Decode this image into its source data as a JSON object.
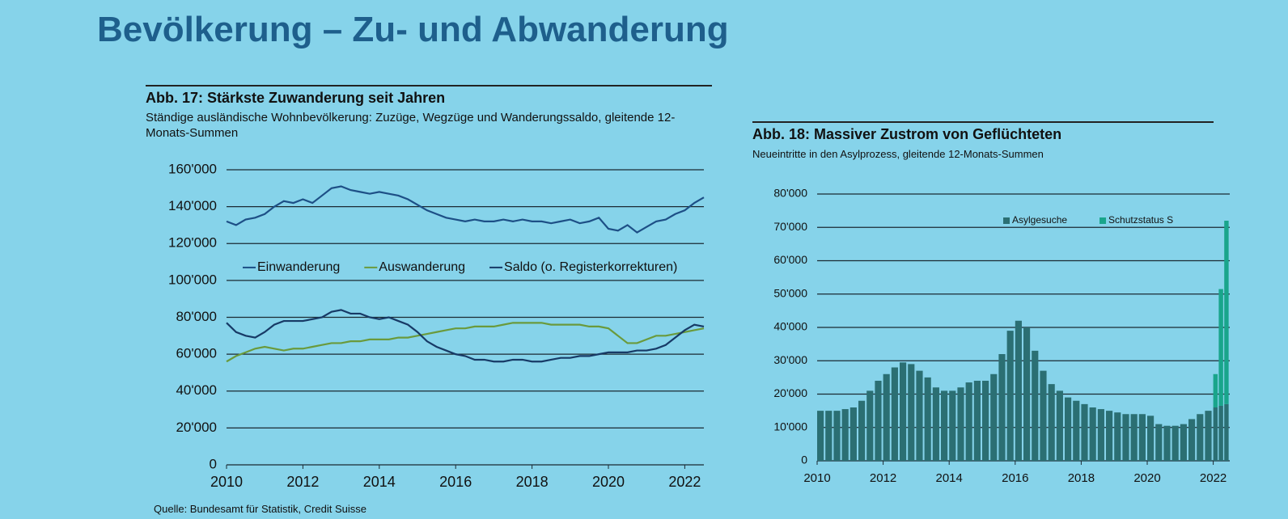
{
  "title": "Bevölkerung – Zu- und Abwanderung",
  "source": "Quelle: Bundesamt für Statistik, Credit Suisse",
  "chart_data": [
    {
      "type": "line",
      "title": "Abb. 17: Stärkste Zuwanderung seit Jahren",
      "subtitle": "Ständige ausländische Wohnbevölkerung: Zuzüge, Wegzüge und Wanderungssaldo, gleitende 12-Monats-Summen",
      "x": [
        2010,
        2010.25,
        2010.5,
        2010.75,
        2011,
        2011.25,
        2011.5,
        2011.75,
        2012,
        2012.25,
        2012.5,
        2012.75,
        2013,
        2013.25,
        2013.5,
        2013.75,
        2014,
        2014.25,
        2014.5,
        2014.75,
        2015,
        2015.25,
        2015.5,
        2015.75,
        2016,
        2016.25,
        2016.5,
        2016.75,
        2017,
        2017.25,
        2017.5,
        2017.75,
        2018,
        2018.25,
        2018.5,
        2018.75,
        2019,
        2019.25,
        2019.5,
        2019.75,
        2020,
        2020.25,
        2020.5,
        2020.75,
        2021,
        2021.25,
        2021.5,
        2021.75,
        2022,
        2022.25,
        2022.5
      ],
      "xlim": [
        2010,
        2022.5
      ],
      "xticks": [
        2010,
        2012,
        2014,
        2016,
        2018,
        2020,
        2022
      ],
      "ylim": [
        0,
        160000
      ],
      "yticks": [
        0,
        {
          "value": 20000,
          "label": "20'000"
        },
        {
          "value": 40000,
          "label": "40'000"
        },
        {
          "value": 60000,
          "label": "60'000"
        },
        {
          "value": 80000,
          "label": "80'000"
        },
        {
          "value": 100000,
          "label": "100'000"
        },
        {
          "value": 120000,
          "label": "120'000"
        },
        {
          "value": 140000,
          "label": "140'000"
        },
        {
          "value": 160000,
          "label": "160'000"
        }
      ],
      "grid": true,
      "legend": "center",
      "series": [
        {
          "name": "Einwanderung",
          "color": "#1d4f86",
          "values": [
            132000,
            130000,
            133000,
            134000,
            136000,
            140000,
            143000,
            142000,
            144000,
            142000,
            146000,
            150000,
            151000,
            149000,
            148000,
            147000,
            148000,
            147000,
            146000,
            144000,
            141000,
            138000,
            136000,
            134000,
            133000,
            132000,
            133000,
            132000,
            132000,
            133000,
            132000,
            133000,
            132000,
            132000,
            131000,
            132000,
            133000,
            131000,
            132000,
            134000,
            128000,
            127000,
            130000,
            126000,
            129000,
            132000,
            133000,
            136000,
            138000,
            142000,
            145000
          ]
        },
        {
          "name": "Auswanderung",
          "color": "#6a9a3c",
          "values": [
            56000,
            59000,
            61000,
            63000,
            64000,
            63000,
            62000,
            63000,
            63000,
            64000,
            65000,
            66000,
            66000,
            67000,
            67000,
            68000,
            68000,
            68000,
            69000,
            69000,
            70000,
            71000,
            72000,
            73000,
            74000,
            74000,
            75000,
            75000,
            75000,
            76000,
            77000,
            77000,
            77000,
            77000,
            76000,
            76000,
            76000,
            76000,
            75000,
            75000,
            74000,
            70000,
            66000,
            66000,
            68000,
            70000,
            70000,
            71000,
            72000,
            73000,
            74000
          ]
        },
        {
          "name": "Saldo (o. Registerkorrekturen)",
          "color": "#173a66",
          "values": [
            77000,
            72000,
            70000,
            69000,
            72000,
            76000,
            78000,
            78000,
            78000,
            79000,
            80000,
            83000,
            84000,
            82000,
            82000,
            80000,
            79000,
            80000,
            78000,
            76000,
            72000,
            67000,
            64000,
            62000,
            60000,
            59000,
            57000,
            57000,
            56000,
            56000,
            57000,
            57000,
            56000,
            56000,
            57000,
            58000,
            58000,
            59000,
            59000,
            60000,
            61000,
            61000,
            61000,
            62000,
            62000,
            63000,
            65000,
            69000,
            73000,
            76000,
            75000
          ]
        }
      ]
    },
    {
      "type": "bar",
      "title": "Abb. 18: Massiver Zustrom von Geflüchteten",
      "subtitle": "Neueintritte in den Asylprozess, gleitende 12-Monats-Summen",
      "x": [
        2010,
        2010.25,
        2010.5,
        2010.75,
        2011,
        2011.25,
        2011.5,
        2011.75,
        2012,
        2012.25,
        2012.5,
        2012.75,
        2013,
        2013.25,
        2013.5,
        2013.75,
        2014,
        2014.25,
        2014.5,
        2014.75,
        2015,
        2015.25,
        2015.5,
        2015.75,
        2016,
        2016.25,
        2016.5,
        2016.75,
        2017,
        2017.25,
        2017.5,
        2017.75,
        2018,
        2018.25,
        2018.5,
        2018.75,
        2019,
        2019.25,
        2019.5,
        2019.75,
        2020,
        2020.25,
        2020.5,
        2020.75,
        2021,
        2021.25,
        2021.5,
        2021.75,
        2022,
        2022.1667,
        2022.3333
      ],
      "xlim": [
        2010,
        2022.5
      ],
      "xticks": [
        2010,
        2012,
        2014,
        2016,
        2018,
        2020,
        2022
      ],
      "ylim": [
        0,
        80000
      ],
      "yticks": [
        0,
        {
          "value": 10000,
          "label": "10'000"
        },
        {
          "value": 20000,
          "label": "20'000"
        },
        {
          "value": 30000,
          "label": "30'000"
        },
        {
          "value": 40000,
          "label": "40'000"
        },
        {
          "value": 50000,
          "label": "50'000"
        },
        {
          "value": 60000,
          "label": "60'000"
        },
        {
          "value": 70000,
          "label": "70'000"
        },
        {
          "value": 80000,
          "label": "80'000"
        }
      ],
      "grid": true,
      "stacked": true,
      "legend": "top-right",
      "series": [
        {
          "name": "Asylgesuche",
          "color": "#2b6f73",
          "values": [
            15000,
            15000,
            15000,
            15500,
            16000,
            18000,
            21000,
            24000,
            26000,
            28000,
            29500,
            29000,
            27000,
            25000,
            22000,
            21000,
            21000,
            22000,
            23500,
            24000,
            24000,
            26000,
            32000,
            39000,
            42000,
            40000,
            33000,
            27000,
            23000,
            21000,
            19000,
            18000,
            17000,
            16000,
            15500,
            15000,
            14500,
            14000,
            14000,
            14000,
            13500,
            11000,
            10500,
            10500,
            11000,
            12500,
            14000,
            15000,
            16000,
            16500,
            17000
          ]
        },
        {
          "name": "Schutzstatus S",
          "color": "#19a58b",
          "values": [
            0,
            0,
            0,
            0,
            0,
            0,
            0,
            0,
            0,
            0,
            0,
            0,
            0,
            0,
            0,
            0,
            0,
            0,
            0,
            0,
            0,
            0,
            0,
            0,
            0,
            0,
            0,
            0,
            0,
            0,
            0,
            0,
            0,
            0,
            0,
            0,
            0,
            0,
            0,
            0,
            0,
            0,
            0,
            0,
            0,
            0,
            0,
            0,
            10000,
            35000,
            55000
          ]
        }
      ]
    }
  ]
}
